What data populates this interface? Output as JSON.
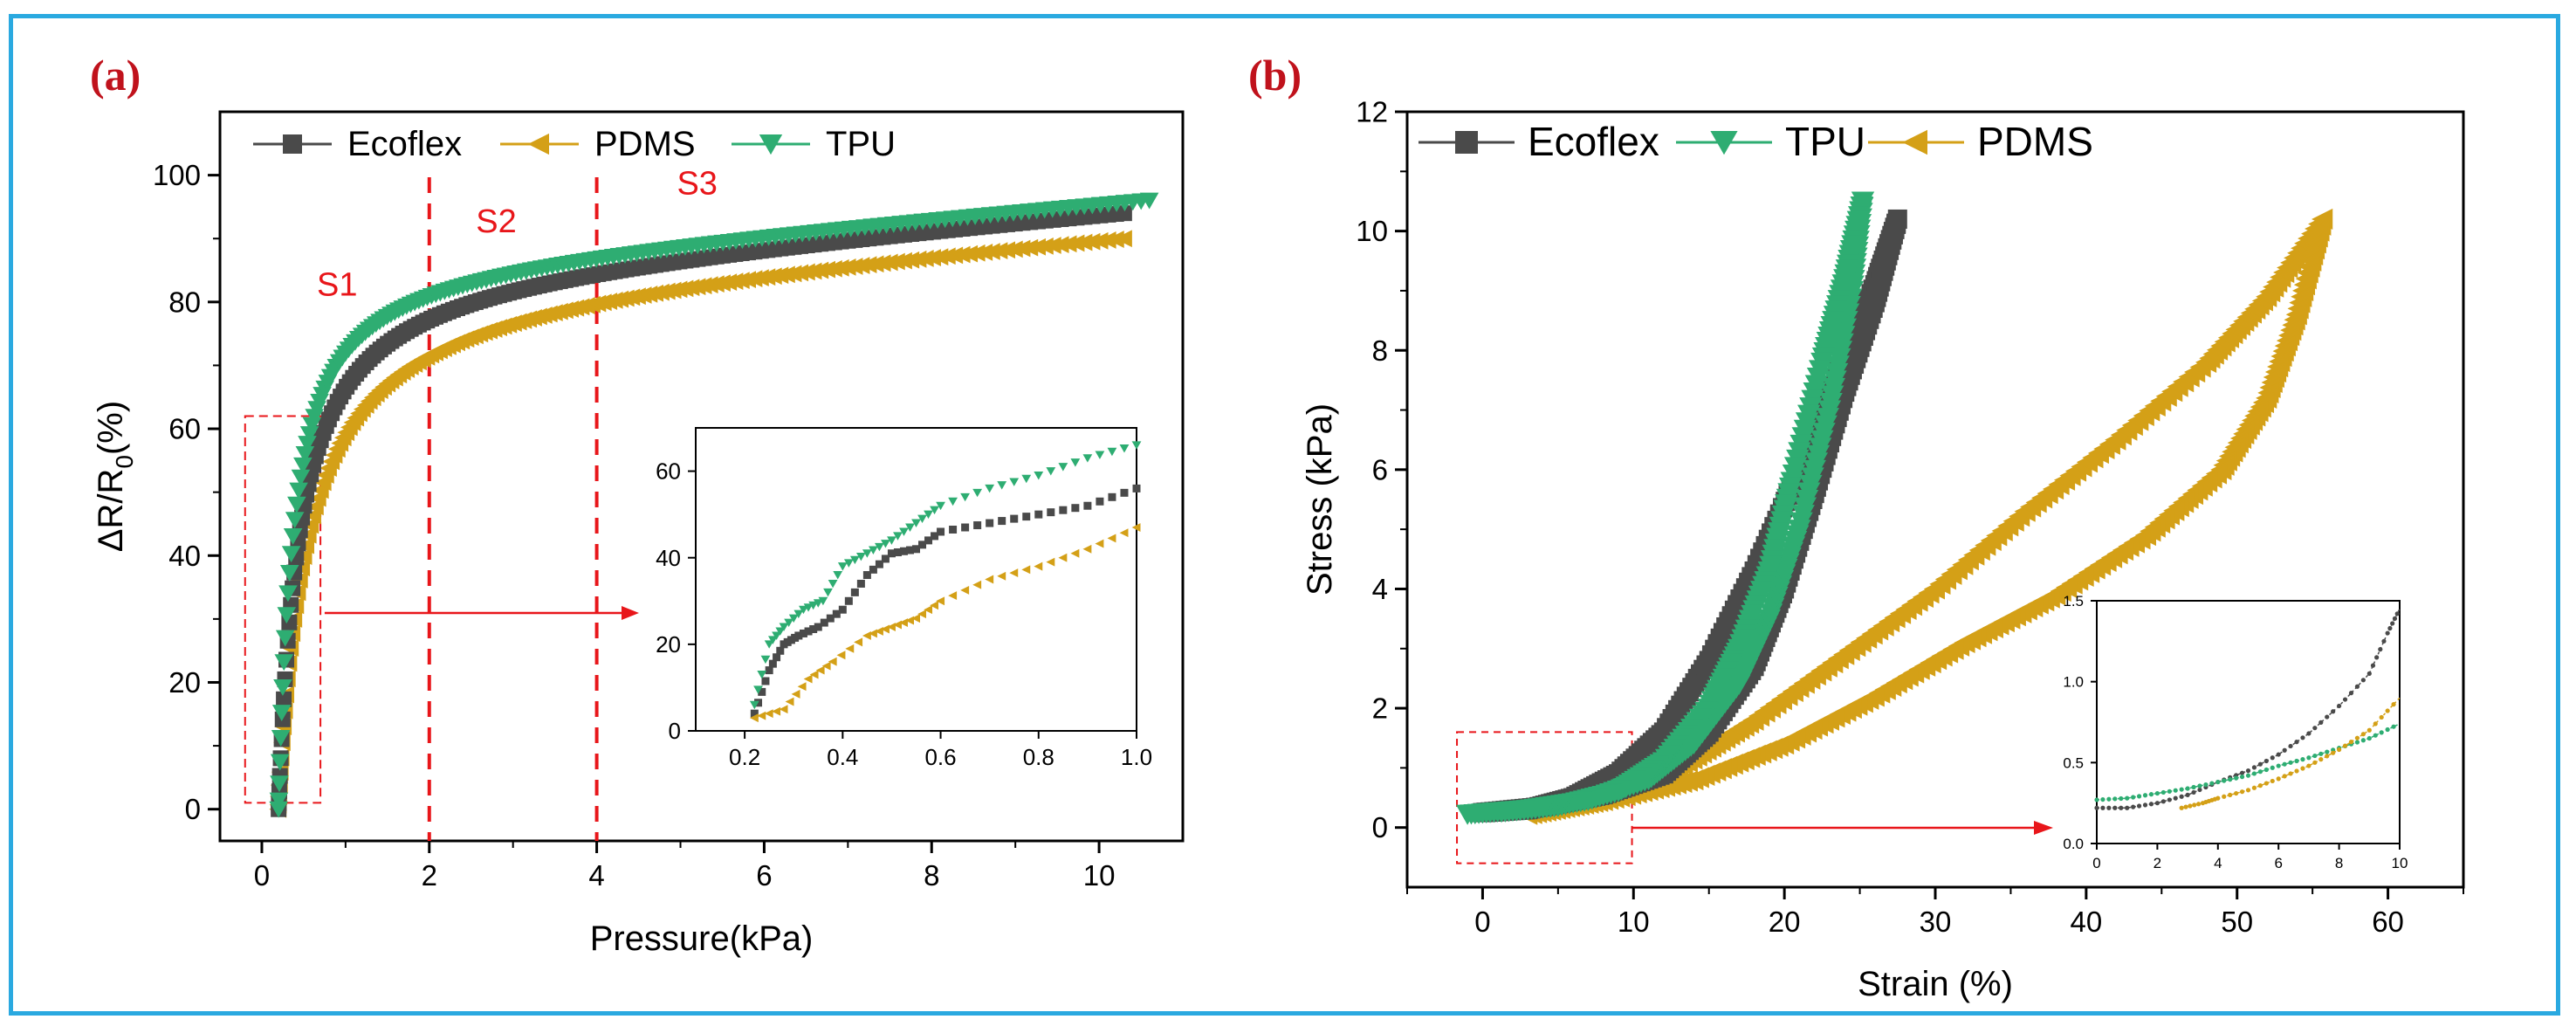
{
  "colors": {
    "frame": "#2aa9e0",
    "ecoflex": "#4a4a4a",
    "pdms": "#d4a017",
    "tpu": "#2ead72",
    "guide": "#e8161a",
    "panel_label": "#c0121c"
  },
  "chart_data": [
    {
      "panel_label": "(a)",
      "type": "scatter",
      "xlabel": "Pressure(kPa)",
      "ylabel": "ΔR/R",
      "ylabel_sub": "0",
      "ylabel_unit": "(%)",
      "xlim": [
        -0.5,
        11
      ],
      "ylim": [
        -5,
        110
      ],
      "xticks": [
        0,
        2,
        4,
        6,
        8,
        10
      ],
      "yticks": [
        0,
        20,
        40,
        60,
        80,
        100
      ],
      "legend": [
        "Ecoflex",
        "PDMS",
        "TPU"
      ],
      "stage_lines_x": [
        2,
        4
      ],
      "stage_labels": [
        {
          "text": "S1",
          "x": 0.9,
          "y": 81
        },
        {
          "text": "S2",
          "x": 2.8,
          "y": 91
        },
        {
          "text": "S3",
          "x": 5.2,
          "y": 97
        }
      ],
      "zoom_box": {
        "x": [
          -0.2,
          0.7
        ],
        "y": [
          1,
          62
        ]
      },
      "series": [
        {
          "name": "Ecoflex",
          "marker": "square",
          "x0": 0.2,
          "x1": 10.3,
          "start": 0,
          "end": 94,
          "k": 0.7
        },
        {
          "name": "PDMS",
          "marker": "triangle-left",
          "x0": 0.2,
          "x1": 10.3,
          "start": 0,
          "end": 90,
          "k": 0.95
        },
        {
          "name": "TPU",
          "marker": "triangle-down",
          "x0": 0.2,
          "x1": 10.6,
          "start": 0,
          "end": 96,
          "k": 0.5
        }
      ],
      "inset": {
        "xlim": [
          0.1,
          1.0
        ],
        "ylim": [
          0,
          70
        ],
        "xticks": [
          0.2,
          0.4,
          0.6,
          0.8,
          1.0
        ],
        "yticks": [
          0,
          20,
          40,
          60
        ],
        "series": [
          {
            "name": "Ecoflex",
            "x": [
              0.22,
              0.25,
              0.28,
              0.31,
              0.35,
              0.4,
              0.45,
              0.5,
              0.55,
              0.6,
              0.7,
              0.8,
              0.9,
              1.0
            ],
            "y": [
              4,
              14,
              20,
              22,
              24,
              28,
              36,
              41,
              42,
              46,
              48,
              50,
              52,
              56
            ]
          },
          {
            "name": "PDMS",
            "x": [
              0.22,
              0.28,
              0.33,
              0.38,
              0.45,
              0.5,
              0.55,
              0.6,
              0.7,
              0.8,
              0.9,
              1.0
            ],
            "y": [
              3,
              5,
              12,
              16,
              22,
              24,
              26,
              30,
              35,
              38,
              42,
              47
            ]
          },
          {
            "name": "TPU",
            "x": [
              0.22,
              0.25,
              0.28,
              0.32,
              0.36,
              0.4,
              0.45,
              0.5,
              0.55,
              0.6,
              0.7,
              0.8,
              0.9,
              1.0
            ],
            "y": [
              6,
              20,
              24,
              28,
              30,
              38,
              41,
              44,
              48,
              52,
              56,
              59,
              63,
              66
            ]
          }
        ]
      }
    },
    {
      "panel_label": "(b)",
      "type": "scatter",
      "xlabel": "Strain (%)",
      "ylabel": "Stress (kPa)",
      "xlim": [
        -5,
        65
      ],
      "ylim": [
        -1,
        12
      ],
      "xticks": [
        0,
        10,
        20,
        30,
        40,
        50,
        60
      ],
      "yticks": [
        0,
        2,
        4,
        6,
        8,
        10,
        12
      ],
      "legend": [
        "Ecoflex",
        "TPU",
        "PDMS"
      ],
      "zoom_box": {
        "x": [
          -1.7,
          9.9
        ],
        "y": [
          -0.6,
          1.6
        ]
      },
      "series": [
        {
          "name": "Ecoflex",
          "marker": "square",
          "load": [
            [
              0,
              0.25
            ],
            [
              3,
              0.3
            ],
            [
              6,
              0.5
            ],
            [
              9,
              0.9
            ],
            [
              12,
              1.6
            ],
            [
              15,
              2.8
            ],
            [
              18,
              4.3
            ],
            [
              21,
              6.0
            ],
            [
              24,
              7.9
            ],
            [
              26,
              9.1
            ],
            [
              27.5,
              10.2
            ]
          ],
          "unload": [
            [
              27.5,
              10.2
            ],
            [
              26,
              8.8
            ],
            [
              24,
              7.3
            ],
            [
              22,
              5.6
            ],
            [
              20,
              4.0
            ],
            [
              18,
              2.7
            ],
            [
              15,
              1.6
            ],
            [
              12,
              0.9
            ],
            [
              8,
              0.55
            ],
            [
              4,
              0.35
            ],
            [
              0,
              0.25
            ]
          ]
        },
        {
          "name": "TPU",
          "marker": "triangle-down",
          "load": [
            [
              -1,
              0.22
            ],
            [
              3,
              0.3
            ],
            [
              7,
              0.45
            ],
            [
              11,
              0.8
            ],
            [
              14,
              1.4
            ],
            [
              17,
              2.4
            ],
            [
              19,
              3.5
            ],
            [
              21,
              5.0
            ],
            [
              23,
              7.0
            ],
            [
              24.5,
              9.0
            ],
            [
              25.2,
              10.5
            ]
          ],
          "unload": [
            [
              25.2,
              10.5
            ],
            [
              24,
              9.2
            ],
            [
              22.5,
              7.8
            ],
            [
              20.5,
              5.8
            ],
            [
              19,
              4.3
            ],
            [
              17,
              3.0
            ],
            [
              15,
              2.0
            ],
            [
              12,
              1.1
            ],
            [
              9,
              0.6
            ],
            [
              5,
              0.35
            ],
            [
              1,
              0.25
            ]
          ]
        },
        {
          "name": "PDMS",
          "marker": "triangle-left",
          "load": [
            [
              3,
              0.22
            ],
            [
              8,
              0.5
            ],
            [
              13,
              1.0
            ],
            [
              18,
              1.8
            ],
            [
              24,
              2.9
            ],
            [
              30,
              4.0
            ],
            [
              36,
              5.3
            ],
            [
              42,
              6.5
            ],
            [
              48,
              7.8
            ],
            [
              52,
              8.9
            ],
            [
              55.7,
              10.2
            ]
          ],
          "unload": [
            [
              55.7,
              10.2
            ],
            [
              54,
              8.6
            ],
            [
              52,
              7.2
            ],
            [
              49,
              6.0
            ],
            [
              44,
              4.9
            ],
            [
              38,
              3.9
            ],
            [
              32,
              3.1
            ],
            [
              26,
              2.2
            ],
            [
              20,
              1.4
            ],
            [
              14,
              0.8
            ],
            [
              8,
              0.45
            ],
            [
              3,
              0.22
            ]
          ]
        }
      ],
      "inset": {
        "xlim": [
          0,
          10
        ],
        "ylim": [
          0,
          1.5
        ],
        "xticks": [
          0,
          2,
          4,
          6,
          8,
          10
        ],
        "yticks": [
          0.0,
          0.5,
          1.0,
          1.5
        ],
        "tick_labels_x": [
          "0",
          "2",
          "4",
          "6",
          "8",
          "10"
        ],
        "tick_labels_y": [
          "0.0",
          "0.5",
          "1.0",
          "1.5"
        ],
        "series": [
          {
            "name": "Ecoflex",
            "x": [
              0,
              1,
              2,
              3,
              4,
              5,
              6,
              7,
              8,
              9,
              9.6,
              10
            ],
            "y": [
              0.22,
              0.22,
              0.25,
              0.3,
              0.38,
              0.45,
              0.55,
              0.68,
              0.85,
              1.05,
              1.3,
              1.45
            ]
          },
          {
            "name": "TPU",
            "x": [
              0,
              1,
              2,
              3,
              4,
              5,
              6,
              7,
              8,
              9,
              10
            ],
            "y": [
              0.27,
              0.28,
              0.31,
              0.34,
              0.38,
              0.42,
              0.48,
              0.53,
              0.59,
              0.65,
              0.74
            ]
          },
          {
            "name": "PDMS",
            "x": [
              2.8,
              3.5,
              4,
              5,
              6,
              7,
              8,
              9,
              10
            ],
            "y": [
              0.22,
              0.25,
              0.28,
              0.33,
              0.4,
              0.48,
              0.58,
              0.7,
              0.9
            ]
          }
        ]
      }
    }
  ]
}
